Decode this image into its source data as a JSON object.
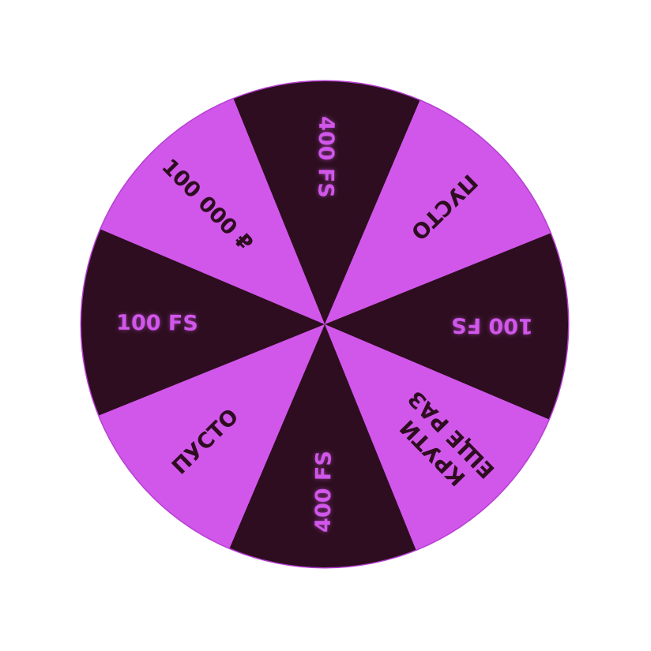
{
  "wheel": {
    "colors": {
      "dark": "#2d0d1f",
      "light": "#d157eb",
      "rim": "#b73fd2",
      "dark_text": "#d157eb",
      "light_text": "#2d0d1f"
    },
    "segments": [
      {
        "label": [
          "400 FS"
        ],
        "fill": "dark"
      },
      {
        "label": [
          "ПУСТО"
        ],
        "fill": "light"
      },
      {
        "label": [
          "100 FS"
        ],
        "fill": "dark"
      },
      {
        "label": [
          "КРУТИ",
          "ЕЩЕ РАЗ"
        ],
        "fill": "light"
      },
      {
        "label": [
          "400 FS"
        ],
        "fill": "dark"
      },
      {
        "label": [
          "ПУСТО"
        ],
        "fill": "light"
      },
      {
        "label": [
          "100 FS"
        ],
        "fill": "dark"
      },
      {
        "label": [
          "100 000 ₽"
        ],
        "fill": "light"
      }
    ]
  }
}
